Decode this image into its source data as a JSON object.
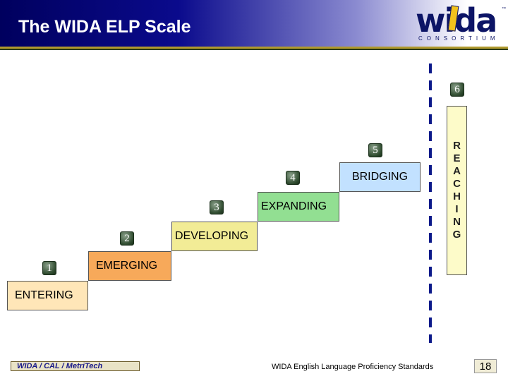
{
  "header": {
    "title": "The WIDA ELP Scale",
    "logo": {
      "word": "wida",
      "subtitle": "CONSORTIUM",
      "tm": "™"
    }
  },
  "levels": [
    {
      "number": "1",
      "label": "ENTERING",
      "color": "#ffe6b8"
    },
    {
      "number": "2",
      "label": "EMERGING",
      "color": "#f7a95a"
    },
    {
      "number": "3",
      "label": "DEVELOPING",
      "color": "#f2ec96"
    },
    {
      "number": "4",
      "label": "EXPANDING",
      "color": "#92df92"
    },
    {
      "number": "5",
      "label": "BRIDGING",
      "color": "#c2e1ff"
    },
    {
      "number": "6",
      "label": "REACHING",
      "color": "#fdfbc9",
      "letters": [
        "R",
        "E",
        "A",
        "C",
        "H",
        "I",
        "N",
        "G"
      ]
    }
  ],
  "footer": {
    "logo_text": "WIDA / CAL / MetriTech",
    "text": "WIDA English Language Proficiency Standards",
    "page_number": "18"
  }
}
